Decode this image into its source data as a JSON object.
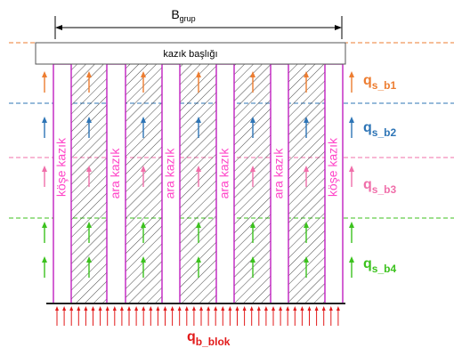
{
  "dimension": {
    "main": "B",
    "sub": "grup"
  },
  "cap": {
    "label": "kazık başlığı"
  },
  "piles": [
    {
      "label": "köşe kazık",
      "type": "corner"
    },
    {
      "label": "ara kazık",
      "type": "inner"
    },
    {
      "label": "ara kazık",
      "type": "inner"
    },
    {
      "label": "ara kazık",
      "type": "inner"
    },
    {
      "label": "ara kazık",
      "type": "inner"
    },
    {
      "label": "köşe kazık",
      "type": "corner"
    }
  ],
  "layers": [
    {
      "main": "q",
      "sub": "s_b1",
      "color": "#ed7d31"
    },
    {
      "main": "q",
      "sub": "s_b2",
      "color": "#2e75b6"
    },
    {
      "main": "q",
      "sub": "s_b3",
      "color": "#f06faa"
    },
    {
      "main": "q",
      "sub": "s_b4",
      "color": "#3cc21e"
    }
  ],
  "base": {
    "main": "q",
    "sub": "b_blok",
    "color": "#e21a1a"
  },
  "colors": {
    "pile_outline": "#c020c0",
    "pile_label": "#ff44c8",
    "hatch": "#333333",
    "line": "#000000"
  }
}
